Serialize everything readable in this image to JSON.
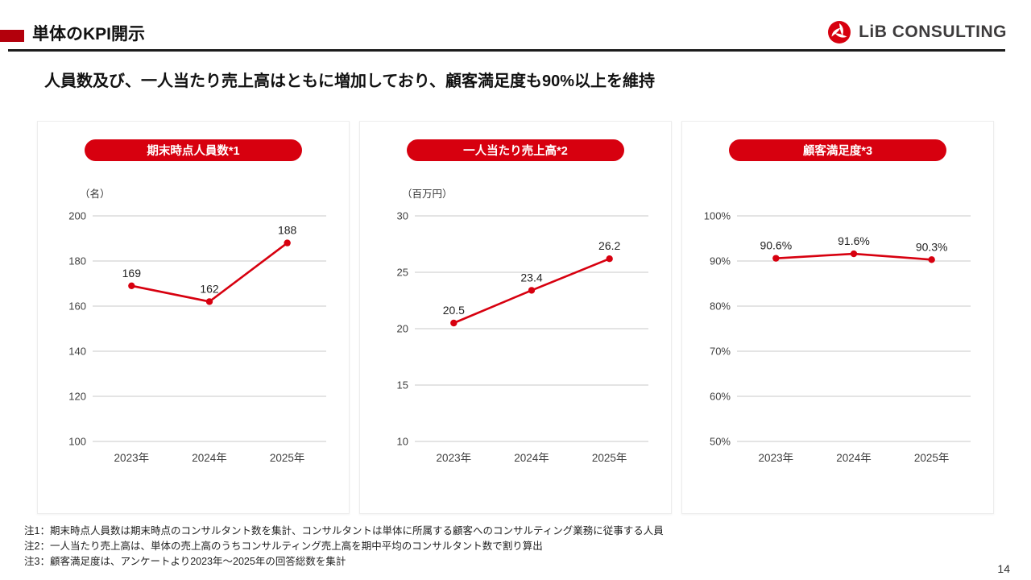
{
  "header": {
    "title": "単体のKPI開示",
    "logo_text": "LiB CONSULTING"
  },
  "subtitle": "人員数及び、一人当たり売上高はともに増加しており、顧客満足度も90%以上を維持",
  "colors": {
    "accent": "#d7000f",
    "header_bar": "#b3000c",
    "grid": "#c9c9c9"
  },
  "chart_data": [
    {
      "type": "line",
      "title": "期末時点人員数*1",
      "unit": "（名）",
      "categories": [
        "2023年",
        "2024年",
        "2025年"
      ],
      "values": [
        169,
        162,
        188
      ],
      "value_labels": [
        "169",
        "162",
        "188"
      ],
      "ylim": [
        100,
        200
      ],
      "yticks": [
        100,
        120,
        140,
        160,
        180,
        200
      ],
      "ytick_labels": [
        "100",
        "120",
        "140",
        "160",
        "180",
        "200"
      ],
      "line_color": "#d7000f",
      "grid": true,
      "legend": "none"
    },
    {
      "type": "line",
      "title": "一人当たり売上高*2",
      "unit": "（百万円）",
      "categories": [
        "2023年",
        "2024年",
        "2025年"
      ],
      "values": [
        20.5,
        23.4,
        26.2
      ],
      "value_labels": [
        "20.5",
        "23.4",
        "26.2"
      ],
      "ylim": [
        10,
        30
      ],
      "yticks": [
        10,
        15,
        20,
        25,
        30
      ],
      "ytick_labels": [
        "10",
        "15",
        "20",
        "25",
        "30"
      ],
      "line_color": "#d7000f",
      "grid": true,
      "legend": "none"
    },
    {
      "type": "line",
      "title": "顧客満足度*3",
      "unit": "",
      "categories": [
        "2023年",
        "2024年",
        "2025年"
      ],
      "values": [
        90.6,
        91.6,
        90.3
      ],
      "value_labels": [
        "90.6%",
        "91.6%",
        "90.3%"
      ],
      "ylim": [
        50,
        100
      ],
      "yticks": [
        50,
        60,
        70,
        80,
        90,
        100
      ],
      "ytick_labels": [
        "50%",
        "60%",
        "70%",
        "80%",
        "90%",
        "100%"
      ],
      "line_color": "#d7000f",
      "grid": true,
      "legend": "none"
    }
  ],
  "footnotes": [
    "注1：期末時点人員数は期末時点のコンサルタント数を集計、コンサルタントは単体に所属する顧客へのコンサルティング業務に従事する人員",
    "注2：一人当たり売上高は、単体の売上高のうちコンサルティング売上高を期中平均のコンサルタント数で割り算出",
    "注3：顧客満足度は、アンケートより2023年〜2025年の回答総数を集計"
  ],
  "page_number": "14"
}
